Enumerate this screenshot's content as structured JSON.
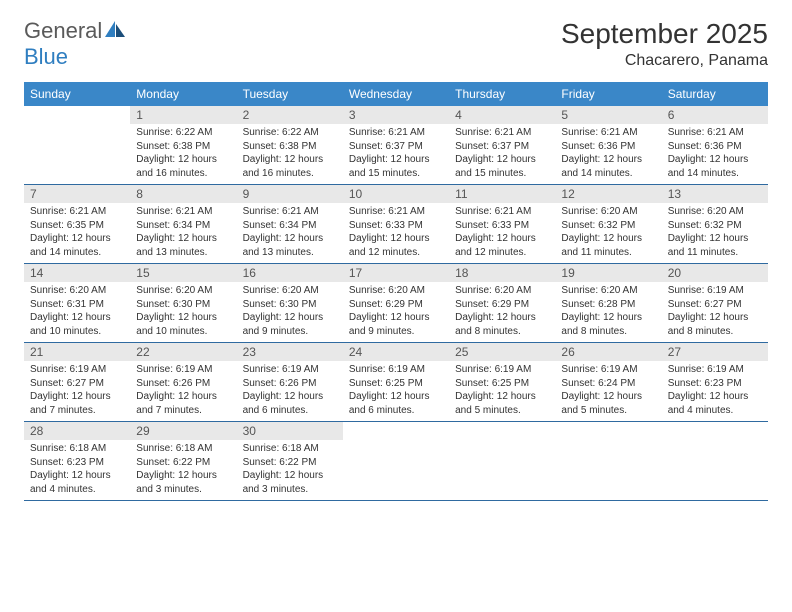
{
  "brand": {
    "name_part1": "General",
    "name_part2": "Blue"
  },
  "title": "September 2025",
  "location": "Chacarero, Panama",
  "colors": {
    "header_bg": "#3a87c8",
    "header_text": "#ffffff",
    "daynum_bg": "#e8e8e8",
    "row_divider": "#2f6aa0",
    "body_text": "#333333",
    "brand_gray": "#5a5a5a",
    "brand_blue": "#2f7ec0"
  },
  "weekdays": [
    "Sunday",
    "Monday",
    "Tuesday",
    "Wednesday",
    "Thursday",
    "Friday",
    "Saturday"
  ],
  "weeks": [
    [
      {
        "n": "",
        "sunrise": "",
        "sunset": "",
        "daylight": ""
      },
      {
        "n": "1",
        "sunrise": "Sunrise: 6:22 AM",
        "sunset": "Sunset: 6:38 PM",
        "daylight": "Daylight: 12 hours and 16 minutes."
      },
      {
        "n": "2",
        "sunrise": "Sunrise: 6:22 AM",
        "sunset": "Sunset: 6:38 PM",
        "daylight": "Daylight: 12 hours and 16 minutes."
      },
      {
        "n": "3",
        "sunrise": "Sunrise: 6:21 AM",
        "sunset": "Sunset: 6:37 PM",
        "daylight": "Daylight: 12 hours and 15 minutes."
      },
      {
        "n": "4",
        "sunrise": "Sunrise: 6:21 AM",
        "sunset": "Sunset: 6:37 PM",
        "daylight": "Daylight: 12 hours and 15 minutes."
      },
      {
        "n": "5",
        "sunrise": "Sunrise: 6:21 AM",
        "sunset": "Sunset: 6:36 PM",
        "daylight": "Daylight: 12 hours and 14 minutes."
      },
      {
        "n": "6",
        "sunrise": "Sunrise: 6:21 AM",
        "sunset": "Sunset: 6:36 PM",
        "daylight": "Daylight: 12 hours and 14 minutes."
      }
    ],
    [
      {
        "n": "7",
        "sunrise": "Sunrise: 6:21 AM",
        "sunset": "Sunset: 6:35 PM",
        "daylight": "Daylight: 12 hours and 14 minutes."
      },
      {
        "n": "8",
        "sunrise": "Sunrise: 6:21 AM",
        "sunset": "Sunset: 6:34 PM",
        "daylight": "Daylight: 12 hours and 13 minutes."
      },
      {
        "n": "9",
        "sunrise": "Sunrise: 6:21 AM",
        "sunset": "Sunset: 6:34 PM",
        "daylight": "Daylight: 12 hours and 13 minutes."
      },
      {
        "n": "10",
        "sunrise": "Sunrise: 6:21 AM",
        "sunset": "Sunset: 6:33 PM",
        "daylight": "Daylight: 12 hours and 12 minutes."
      },
      {
        "n": "11",
        "sunrise": "Sunrise: 6:21 AM",
        "sunset": "Sunset: 6:33 PM",
        "daylight": "Daylight: 12 hours and 12 minutes."
      },
      {
        "n": "12",
        "sunrise": "Sunrise: 6:20 AM",
        "sunset": "Sunset: 6:32 PM",
        "daylight": "Daylight: 12 hours and 11 minutes."
      },
      {
        "n": "13",
        "sunrise": "Sunrise: 6:20 AM",
        "sunset": "Sunset: 6:32 PM",
        "daylight": "Daylight: 12 hours and 11 minutes."
      }
    ],
    [
      {
        "n": "14",
        "sunrise": "Sunrise: 6:20 AM",
        "sunset": "Sunset: 6:31 PM",
        "daylight": "Daylight: 12 hours and 10 minutes."
      },
      {
        "n": "15",
        "sunrise": "Sunrise: 6:20 AM",
        "sunset": "Sunset: 6:30 PM",
        "daylight": "Daylight: 12 hours and 10 minutes."
      },
      {
        "n": "16",
        "sunrise": "Sunrise: 6:20 AM",
        "sunset": "Sunset: 6:30 PM",
        "daylight": "Daylight: 12 hours and 9 minutes."
      },
      {
        "n": "17",
        "sunrise": "Sunrise: 6:20 AM",
        "sunset": "Sunset: 6:29 PM",
        "daylight": "Daylight: 12 hours and 9 minutes."
      },
      {
        "n": "18",
        "sunrise": "Sunrise: 6:20 AM",
        "sunset": "Sunset: 6:29 PM",
        "daylight": "Daylight: 12 hours and 8 minutes."
      },
      {
        "n": "19",
        "sunrise": "Sunrise: 6:20 AM",
        "sunset": "Sunset: 6:28 PM",
        "daylight": "Daylight: 12 hours and 8 minutes."
      },
      {
        "n": "20",
        "sunrise": "Sunrise: 6:19 AM",
        "sunset": "Sunset: 6:27 PM",
        "daylight": "Daylight: 12 hours and 8 minutes."
      }
    ],
    [
      {
        "n": "21",
        "sunrise": "Sunrise: 6:19 AM",
        "sunset": "Sunset: 6:27 PM",
        "daylight": "Daylight: 12 hours and 7 minutes."
      },
      {
        "n": "22",
        "sunrise": "Sunrise: 6:19 AM",
        "sunset": "Sunset: 6:26 PM",
        "daylight": "Daylight: 12 hours and 7 minutes."
      },
      {
        "n": "23",
        "sunrise": "Sunrise: 6:19 AM",
        "sunset": "Sunset: 6:26 PM",
        "daylight": "Daylight: 12 hours and 6 minutes."
      },
      {
        "n": "24",
        "sunrise": "Sunrise: 6:19 AM",
        "sunset": "Sunset: 6:25 PM",
        "daylight": "Daylight: 12 hours and 6 minutes."
      },
      {
        "n": "25",
        "sunrise": "Sunrise: 6:19 AM",
        "sunset": "Sunset: 6:25 PM",
        "daylight": "Daylight: 12 hours and 5 minutes."
      },
      {
        "n": "26",
        "sunrise": "Sunrise: 6:19 AM",
        "sunset": "Sunset: 6:24 PM",
        "daylight": "Daylight: 12 hours and 5 minutes."
      },
      {
        "n": "27",
        "sunrise": "Sunrise: 6:19 AM",
        "sunset": "Sunset: 6:23 PM",
        "daylight": "Daylight: 12 hours and 4 minutes."
      }
    ],
    [
      {
        "n": "28",
        "sunrise": "Sunrise: 6:18 AM",
        "sunset": "Sunset: 6:23 PM",
        "daylight": "Daylight: 12 hours and 4 minutes."
      },
      {
        "n": "29",
        "sunrise": "Sunrise: 6:18 AM",
        "sunset": "Sunset: 6:22 PM",
        "daylight": "Daylight: 12 hours and 3 minutes."
      },
      {
        "n": "30",
        "sunrise": "Sunrise: 6:18 AM",
        "sunset": "Sunset: 6:22 PM",
        "daylight": "Daylight: 12 hours and 3 minutes."
      },
      {
        "n": "",
        "sunrise": "",
        "sunset": "",
        "daylight": ""
      },
      {
        "n": "",
        "sunrise": "",
        "sunset": "",
        "daylight": ""
      },
      {
        "n": "",
        "sunrise": "",
        "sunset": "",
        "daylight": ""
      },
      {
        "n": "",
        "sunrise": "",
        "sunset": "",
        "daylight": ""
      }
    ]
  ]
}
